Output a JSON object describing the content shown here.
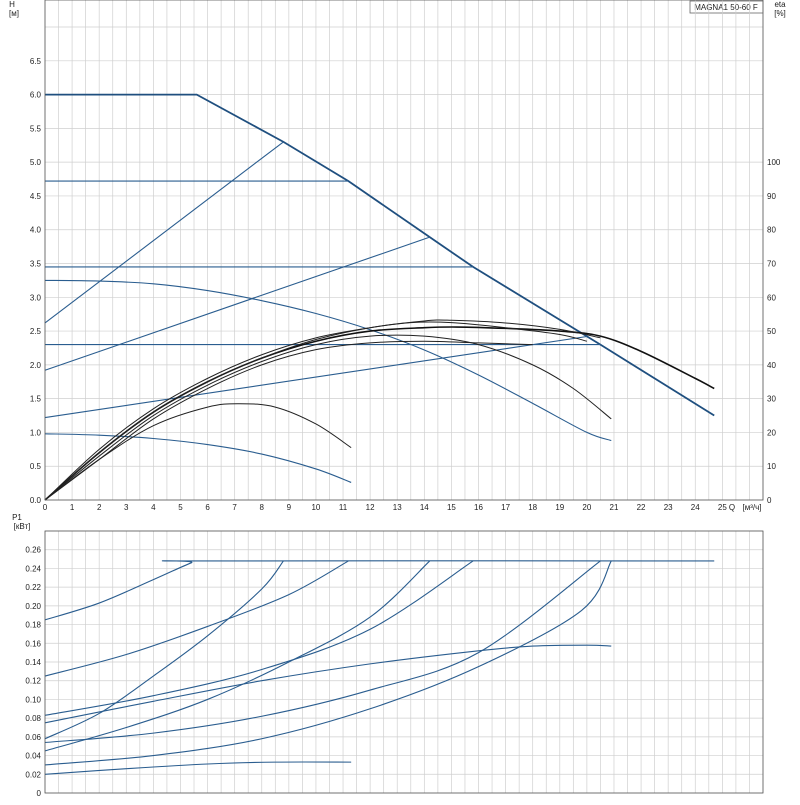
{
  "chart_data": [
    {
      "type": "line",
      "title": "MAGNA1 50-60 F",
      "ylabel": "H",
      "yunit": "[м]",
      "y2label": "eta",
      "y2unit": "[%]",
      "xlabel": "Q",
      "xunit": "[м³/ч]",
      "xlim": [
        0,
        26.5
      ],
      "ylim": [
        0,
        7.4
      ],
      "y2lim": [
        0,
        100
      ],
      "xticks": [
        "0",
        "1",
        "2",
        "3",
        "4",
        "5",
        "6",
        "7",
        "8",
        "9",
        "10",
        "11",
        "12",
        "13",
        "14",
        "15",
        "16",
        "17",
        "18",
        "19",
        "20",
        "21",
        "22",
        "23",
        "24",
        "25"
      ],
      "yticks": [
        "0.0",
        "0.5",
        "1.0",
        "1.5",
        "2.0",
        "2.5",
        "3.0",
        "3.5",
        "4.0",
        "4.5",
        "5.0",
        "5.5",
        "6.0",
        "6.5"
      ],
      "y2ticks": [
        "0",
        "10",
        "20",
        "30",
        "40",
        "50",
        "60",
        "70",
        "80",
        "90",
        "100"
      ],
      "grid": true,
      "pump_curves": [
        {
          "points": [
            [
              0,
              6.0
            ],
            [
              5.6,
              6.0
            ],
            [
              8.8,
              5.3
            ],
            [
              11.2,
              4.72
            ],
            [
              14.2,
              3.89
            ],
            [
              15.8,
              3.45
            ],
            [
              20.5,
              2.3
            ],
            [
              24.7,
              1.25
            ]
          ]
        },
        {
          "points": [
            [
              0,
              4.72
            ],
            [
              11.2,
              4.72
            ]
          ]
        },
        {
          "points": [
            [
              0,
              3.45
            ],
            [
              15.8,
              3.45
            ]
          ]
        },
        {
          "points": [
            [
              0,
              2.3
            ],
            [
              20.5,
              2.3
            ]
          ]
        },
        {
          "points": [
            [
              0,
              3.25
            ],
            [
              2,
              3.24
            ],
            [
              4,
              3.2
            ],
            [
              6,
              3.1
            ],
            [
              8,
              2.95
            ],
            [
              10,
              2.76
            ],
            [
              12,
              2.52
            ],
            [
              14,
              2.22
            ],
            [
              16,
              1.85
            ],
            [
              18,
              1.43
            ],
            [
              20,
              1.0
            ],
            [
              20.9,
              0.88
            ]
          ]
        },
        {
          "points": [
            [
              0,
              0.98
            ],
            [
              2,
              0.96
            ],
            [
              4,
              0.91
            ],
            [
              6,
              0.82
            ],
            [
              8,
              0.68
            ],
            [
              10,
              0.46
            ],
            [
              11.3,
              0.26
            ]
          ]
        }
      ],
      "system_curves": [
        {
          "points": [
            [
              0,
              2.62
            ],
            [
              8.8,
              5.3
            ]
          ]
        },
        {
          "points": [
            [
              0,
              1.92
            ],
            [
              14.2,
              3.89
            ]
          ]
        },
        {
          "points": [
            [
              0,
              1.22
            ],
            [
              20.0,
              2.42
            ]
          ]
        }
      ],
      "efficiency_curves": [
        {
          "points": [
            [
              0,
              0
            ],
            [
              2,
              14
            ],
            [
              4,
              26
            ],
            [
              6,
              35
            ],
            [
              8,
              42
            ],
            [
              10,
              47
            ],
            [
              12,
              50
            ],
            [
              14,
              51
            ],
            [
              15.2,
              51.2
            ],
            [
              17,
              50.8
            ],
            [
              19,
              50
            ],
            [
              20.5,
              48.5
            ],
            [
              22,
              44
            ],
            [
              24,
              36
            ],
            [
              24.7,
              33
            ]
          ]
        },
        {
          "points": [
            [
              0,
              0
            ],
            [
              2,
              14
            ],
            [
              4,
              26
            ],
            [
              6,
              35
            ],
            [
              8,
              42
            ],
            [
              10,
              47.5
            ],
            [
              12,
              51
            ],
            [
              14,
              53
            ],
            [
              15,
              53.2
            ],
            [
              17,
              52.4
            ],
            [
              19,
              50.5
            ],
            [
              20.5,
              48
            ]
          ]
        },
        {
          "points": [
            [
              0,
              0
            ],
            [
              2,
              13
            ],
            [
              4,
              25
            ],
            [
              6,
              34
            ],
            [
              8,
              41
            ],
            [
              10,
              46
            ],
            [
              12,
              48.5
            ],
            [
              14,
              48.5
            ],
            [
              16,
              46
            ],
            [
              18,
              40
            ],
            [
              19.5,
              33
            ],
            [
              20.9,
              24
            ]
          ]
        },
        {
          "points": [
            [
              0,
              0
            ],
            [
              2,
              15
            ],
            [
              4,
              27
            ],
            [
              6,
              36
            ],
            [
              8,
              43
            ],
            [
              10,
              48
            ],
            [
              12,
              51
            ],
            [
              13.5,
              52.5
            ],
            [
              15,
              52.5
            ],
            [
              17,
              51
            ],
            [
              19,
              49
            ],
            [
              20,
              47
            ]
          ]
        },
        {
          "points": [
            [
              0,
              0
            ],
            [
              2,
              12
            ],
            [
              4,
              22
            ],
            [
              6,
              27.5
            ],
            [
              7.2,
              28.5
            ],
            [
              8.5,
              27.5
            ],
            [
              10,
              22.5
            ],
            [
              11.3,
              15.5
            ]
          ]
        },
        {
          "points": [
            [
              0,
              0
            ],
            [
              2,
              12
            ],
            [
              4,
              24
            ],
            [
              6,
              33
            ],
            [
              8,
              40
            ],
            [
              10,
              44.5
            ],
            [
              12,
              46.5
            ],
            [
              14,
              47
            ],
            [
              16,
              46.5
            ],
            [
              18,
              46
            ]
          ]
        }
      ]
    },
    {
      "type": "line",
      "ylabel": "P1",
      "yunit": "[кВт]",
      "xlim": [
        0,
        26.5
      ],
      "ylim": [
        0,
        0.28
      ],
      "yticks": [
        "0",
        "0.02",
        "0.04",
        "0.06",
        "0.08",
        "0.10",
        "0.12",
        "0.14",
        "0.16",
        "0.18",
        "0.20",
        "0.22",
        "0.24",
        "0.26"
      ],
      "grid": true,
      "power_curves": [
        {
          "points": [
            [
              0,
              0.185
            ],
            [
              2,
              0.203
            ],
            [
              4,
              0.228
            ],
            [
              5.4,
              0.246
            ],
            [
              5.8,
              0.248
            ],
            [
              24.7,
              0.248
            ]
          ]
        },
        {
          "points": [
            [
              0,
              0.058
            ],
            [
              2,
              0.085
            ],
            [
              4,
              0.125
            ],
            [
              6,
              0.168
            ],
            [
              8,
              0.218
            ],
            [
              8.8,
              0.248
            ]
          ]
        },
        {
          "points": [
            [
              0,
              0.125
            ],
            [
              3,
              0.148
            ],
            [
              6,
              0.178
            ],
            [
              9,
              0.212
            ],
            [
              11.2,
              0.248
            ]
          ]
        },
        {
          "points": [
            [
              0,
              0.045
            ],
            [
              3,
              0.07
            ],
            [
              6,
              0.1
            ],
            [
              9,
              0.14
            ],
            [
              12,
              0.188
            ],
            [
              14.2,
              0.248
            ]
          ]
        },
        {
          "points": [
            [
              0,
              0.083
            ],
            [
              4,
              0.104
            ],
            [
              8,
              0.132
            ],
            [
              12,
              0.175
            ],
            [
              15.8,
              0.248
            ]
          ]
        },
        {
          "points": [
            [
              0,
              0.054
            ],
            [
              4,
              0.064
            ],
            [
              8,
              0.082
            ],
            [
              12,
              0.11
            ],
            [
              16,
              0.15
            ],
            [
              20.5,
              0.248
            ]
          ]
        },
        {
          "points": [
            [
              0,
              0.03
            ],
            [
              4,
              0.04
            ],
            [
              8,
              0.058
            ],
            [
              12,
              0.09
            ],
            [
              16,
              0.135
            ],
            [
              19.8,
              0.195
            ],
            [
              20.9,
              0.248
            ]
          ]
        },
        {
          "points": [
            [
              0,
              0.075
            ],
            [
              4,
              0.098
            ],
            [
              8,
              0.12
            ],
            [
              12,
              0.138
            ],
            [
              16,
              0.152
            ],
            [
              18,
              0.157
            ],
            [
              20,
              0.158
            ],
            [
              20.9,
              0.157
            ]
          ]
        },
        {
          "points": [
            [
              0,
              0.02
            ],
            [
              3,
              0.026
            ],
            [
              6,
              0.031
            ],
            [
              8.5,
              0.033
            ],
            [
              11.3,
              0.033
            ]
          ]
        }
      ]
    }
  ]
}
